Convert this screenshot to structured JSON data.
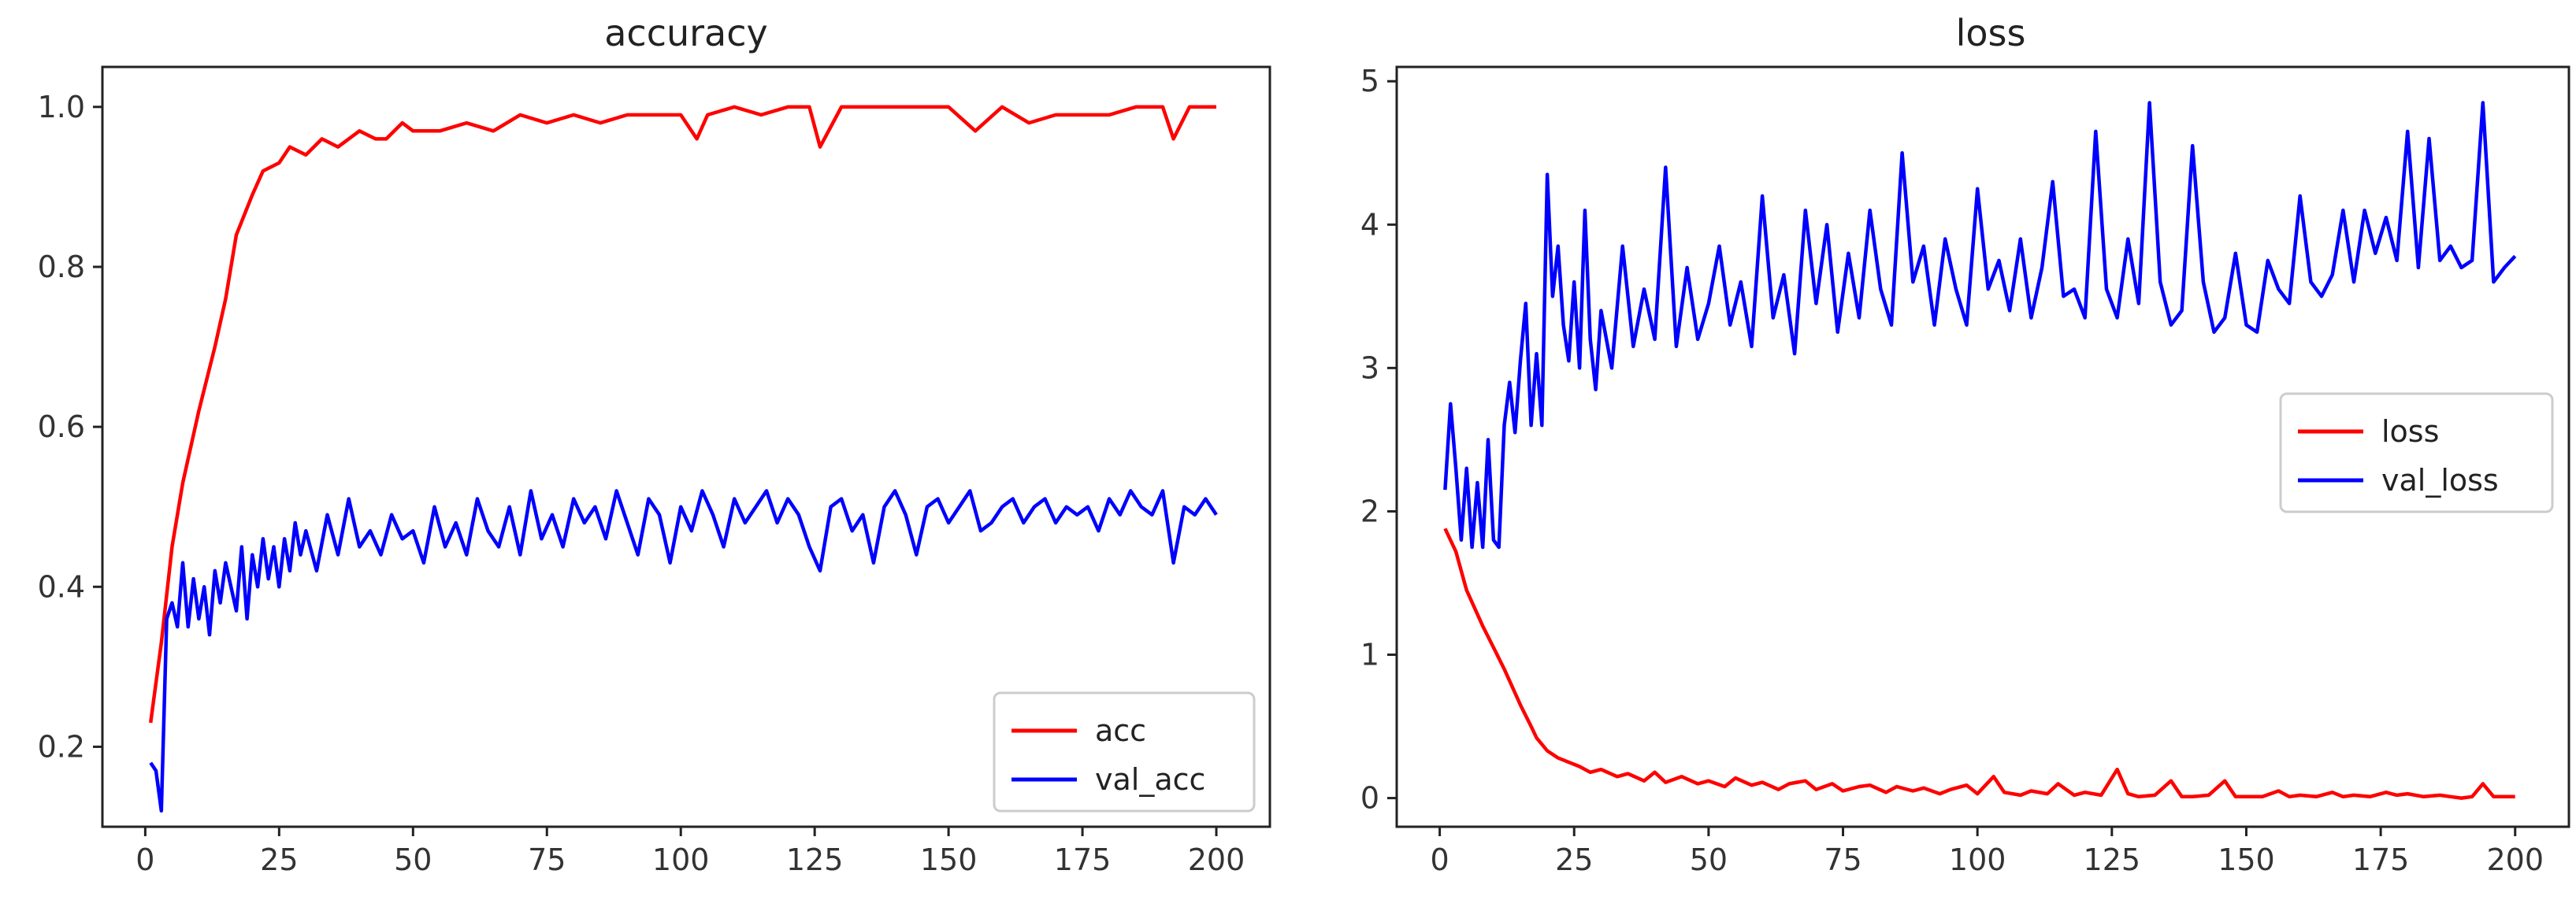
{
  "chart_data": [
    {
      "type": "line",
      "title": "accuracy",
      "xlabel": "",
      "ylabel": "",
      "xlim": [
        -8,
        210
      ],
      "ylim": [
        0.1,
        1.05
      ],
      "xticks": [
        0,
        25,
        50,
        75,
        100,
        125,
        150,
        175,
        200
      ],
      "xtick_labels": [
        "0",
        "25",
        "50",
        "75",
        "100",
        "125",
        "150",
        "175",
        "200"
      ],
      "yticks": [
        0.2,
        0.4,
        0.6,
        0.8,
        1.0
      ],
      "ytick_labels": [
        "0.2",
        "0.4",
        "0.6",
        "0.8",
        "1.0"
      ],
      "grid": false,
      "legend_position": "lower-right",
      "series": [
        {
          "name": "acc",
          "color": "#ff0000",
          "x": [
            1,
            3,
            5,
            7,
            10,
            13,
            15,
            17,
            20,
            22,
            25,
            27,
            30,
            33,
            36,
            40,
            43,
            45,
            48,
            50,
            55,
            60,
            65,
            70,
            75,
            80,
            85,
            90,
            95,
            100,
            103,
            105,
            110,
            115,
            120,
            124,
            126,
            130,
            135,
            140,
            145,
            150,
            155,
            160,
            165,
            170,
            175,
            180,
            185,
            190,
            192,
            195,
            200
          ],
          "values": [
            0.23,
            0.33,
            0.45,
            0.53,
            0.62,
            0.7,
            0.76,
            0.84,
            0.89,
            0.92,
            0.93,
            0.95,
            0.94,
            0.96,
            0.95,
            0.97,
            0.96,
            0.96,
            0.98,
            0.97,
            0.97,
            0.98,
            0.97,
            0.99,
            0.98,
            0.99,
            0.98,
            0.99,
            0.99,
            0.99,
            0.96,
            0.99,
            1.0,
            0.99,
            1.0,
            1.0,
            0.95,
            1.0,
            1.0,
            1.0,
            1.0,
            1.0,
            0.97,
            1.0,
            0.98,
            0.99,
            0.99,
            0.99,
            1.0,
            1.0,
            0.96,
            1.0,
            1.0
          ]
        },
        {
          "name": "val_acc",
          "color": "#0000ff",
          "x": [
            1,
            2,
            3,
            4,
            5,
            6,
            7,
            8,
            9,
            10,
            11,
            12,
            13,
            14,
            15,
            16,
            17,
            18,
            19,
            20,
            21,
            22,
            23,
            24,
            25,
            26,
            27,
            28,
            29,
            30,
            32,
            34,
            36,
            38,
            40,
            42,
            44,
            46,
            48,
            50,
            52,
            54,
            56,
            58,
            60,
            62,
            64,
            66,
            68,
            70,
            72,
            74,
            76,
            78,
            80,
            82,
            84,
            86,
            88,
            90,
            92,
            94,
            96,
            98,
            100,
            102,
            104,
            106,
            108,
            110,
            112,
            114,
            116,
            118,
            120,
            122,
            124,
            126,
            128,
            130,
            132,
            134,
            136,
            138,
            140,
            142,
            144,
            146,
            148,
            150,
            152,
            154,
            156,
            158,
            160,
            162,
            164,
            166,
            168,
            170,
            172,
            174,
            176,
            178,
            180,
            182,
            184,
            186,
            188,
            190,
            192,
            194,
            196,
            198,
            200
          ],
          "values": [
            0.18,
            0.17,
            0.12,
            0.36,
            0.38,
            0.35,
            0.43,
            0.35,
            0.41,
            0.36,
            0.4,
            0.34,
            0.42,
            0.38,
            0.43,
            0.4,
            0.37,
            0.45,
            0.36,
            0.44,
            0.4,
            0.46,
            0.41,
            0.45,
            0.4,
            0.46,
            0.42,
            0.48,
            0.44,
            0.47,
            0.42,
            0.49,
            0.44,
            0.51,
            0.45,
            0.47,
            0.44,
            0.49,
            0.46,
            0.47,
            0.43,
            0.5,
            0.45,
            0.48,
            0.44,
            0.51,
            0.47,
            0.45,
            0.5,
            0.44,
            0.52,
            0.46,
            0.49,
            0.45,
            0.51,
            0.48,
            0.5,
            0.46,
            0.52,
            0.48,
            0.44,
            0.51,
            0.49,
            0.43,
            0.5,
            0.47,
            0.52,
            0.49,
            0.45,
            0.51,
            0.48,
            0.5,
            0.52,
            0.48,
            0.51,
            0.49,
            0.45,
            0.42,
            0.5,
            0.51,
            0.47,
            0.49,
            0.43,
            0.5,
            0.52,
            0.49,
            0.44,
            0.5,
            0.51,
            0.48,
            0.5,
            0.52,
            0.47,
            0.48,
            0.5,
            0.51,
            0.48,
            0.5,
            0.51,
            0.48,
            0.5,
            0.49,
            0.5,
            0.47,
            0.51,
            0.49,
            0.52,
            0.5,
            0.49,
            0.52,
            0.43,
            0.5,
            0.49,
            0.51,
            0.49
          ]
        }
      ]
    },
    {
      "type": "line",
      "title": "loss",
      "xlabel": "",
      "ylabel": "",
      "xlim": [
        -8,
        210
      ],
      "ylim": [
        -0.2,
        5.1
      ],
      "xticks": [
        0,
        25,
        50,
        75,
        100,
        125,
        150,
        175,
        200
      ],
      "xtick_labels": [
        "0",
        "25",
        "50",
        "75",
        "100",
        "125",
        "150",
        "175",
        "200"
      ],
      "yticks": [
        0,
        1,
        2,
        3,
        4,
        5
      ],
      "ytick_labels": [
        "0",
        "1",
        "2",
        "3",
        "4",
        "5"
      ],
      "grid": false,
      "legend_position": "center-right",
      "series": [
        {
          "name": "loss",
          "color": "#ff0000",
          "x": [
            1,
            3,
            5,
            8,
            10,
            12,
            15,
            17,
            18,
            20,
            22,
            24,
            26,
            28,
            30,
            33,
            35,
            38,
            40,
            42,
            45,
            48,
            50,
            53,
            55,
            58,
            60,
            63,
            65,
            68,
            70,
            73,
            75,
            78,
            80,
            83,
            85,
            88,
            90,
            93,
            95,
            98,
            100,
            103,
            105,
            108,
            110,
            113,
            115,
            118,
            120,
            123,
            126,
            128,
            130,
            133,
            136,
            138,
            140,
            143,
            146,
            148,
            150,
            153,
            156,
            158,
            160,
            163,
            166,
            168,
            170,
            173,
            176,
            178,
            180,
            183,
            186,
            188,
            190,
            192,
            194,
            196,
            200
          ],
          "values": [
            1.88,
            1.72,
            1.45,
            1.2,
            1.05,
            0.9,
            0.65,
            0.5,
            0.42,
            0.33,
            0.28,
            0.25,
            0.22,
            0.18,
            0.2,
            0.15,
            0.17,
            0.12,
            0.18,
            0.11,
            0.15,
            0.1,
            0.12,
            0.08,
            0.14,
            0.09,
            0.11,
            0.06,
            0.1,
            0.12,
            0.06,
            0.1,
            0.05,
            0.08,
            0.09,
            0.04,
            0.08,
            0.05,
            0.07,
            0.03,
            0.06,
            0.09,
            0.03,
            0.15,
            0.04,
            0.02,
            0.05,
            0.03,
            0.1,
            0.02,
            0.04,
            0.02,
            0.2,
            0.03,
            0.01,
            0.02,
            0.12,
            0.01,
            0.01,
            0.02,
            0.12,
            0.01,
            0.01,
            0.01,
            0.05,
            0.01,
            0.02,
            0.01,
            0.04,
            0.01,
            0.02,
            0.01,
            0.04,
            0.02,
            0.03,
            0.01,
            0.02,
            0.01,
            0.0,
            0.01,
            0.1,
            0.01,
            0.01
          ]
        },
        {
          "name": "val_loss",
          "color": "#0000ff",
          "x": [
            1,
            2,
            3,
            4,
            5,
            6,
            7,
            8,
            9,
            10,
            11,
            12,
            13,
            14,
            15,
            16,
            17,
            18,
            19,
            20,
            21,
            22,
            23,
            24,
            25,
            26,
            27,
            28,
            29,
            30,
            32,
            34,
            36,
            38,
            40,
            42,
            44,
            46,
            48,
            50,
            52,
            54,
            56,
            58,
            60,
            62,
            64,
            66,
            68,
            70,
            72,
            74,
            76,
            78,
            80,
            82,
            84,
            86,
            88,
            90,
            92,
            94,
            96,
            98,
            100,
            102,
            104,
            106,
            108,
            110,
            112,
            114,
            116,
            118,
            120,
            122,
            124,
            126,
            128,
            130,
            132,
            134,
            136,
            138,
            140,
            142,
            144,
            146,
            148,
            150,
            152,
            154,
            156,
            158,
            160,
            162,
            164,
            166,
            168,
            170,
            172,
            174,
            176,
            178,
            180,
            182,
            184,
            186,
            188,
            190,
            192,
            194,
            196,
            198,
            200
          ],
          "values": [
            2.15,
            2.75,
            2.3,
            1.8,
            2.3,
            1.75,
            2.2,
            1.75,
            2.5,
            1.8,
            1.75,
            2.6,
            2.9,
            2.55,
            3.05,
            3.45,
            2.6,
            3.1,
            2.6,
            4.35,
            3.5,
            3.85,
            3.3,
            3.05,
            3.6,
            3.0,
            4.1,
            3.2,
            2.85,
            3.4,
            3.0,
            3.85,
            3.15,
            3.55,
            3.2,
            4.4,
            3.15,
            3.7,
            3.2,
            3.45,
            3.85,
            3.3,
            3.6,
            3.15,
            4.2,
            3.35,
            3.65,
            3.1,
            4.1,
            3.45,
            4.0,
            3.25,
            3.8,
            3.35,
            4.1,
            3.55,
            3.3,
            4.5,
            3.6,
            3.85,
            3.3,
            3.9,
            3.55,
            3.3,
            4.25,
            3.55,
            3.75,
            3.4,
            3.9,
            3.35,
            3.7,
            4.3,
            3.5,
            3.55,
            3.35,
            4.65,
            3.55,
            3.35,
            3.9,
            3.45,
            4.85,
            3.6,
            3.3,
            3.4,
            4.55,
            3.6,
            3.25,
            3.35,
            3.8,
            3.3,
            3.25,
            3.75,
            3.55,
            3.45,
            4.2,
            3.6,
            3.5,
            3.65,
            4.1,
            3.6,
            4.1,
            3.8,
            4.05,
            3.75,
            4.65,
            3.7,
            4.6,
            3.75,
            3.85,
            3.7,
            3.75,
            4.85,
            3.6,
            3.7,
            3.78
          ]
        }
      ]
    }
  ]
}
